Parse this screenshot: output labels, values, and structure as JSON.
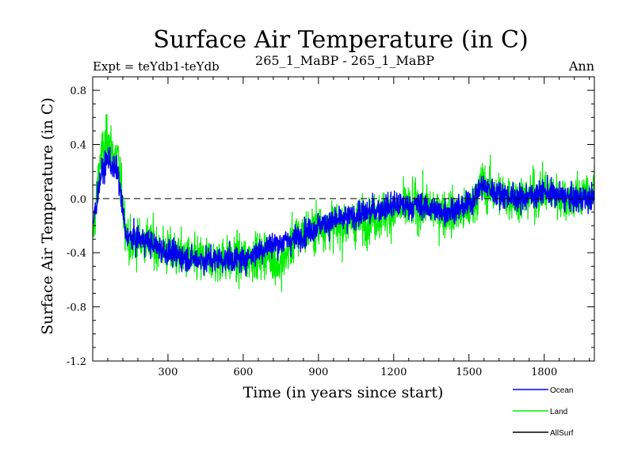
{
  "chart_data": {
    "type": "line",
    "title": "Surface Air Temperature (in C)",
    "subtitle_left": "Expt = teYdb1-teYdb",
    "subtitle_center": "265_1_MaBP - 265_1_MaBP",
    "subtitle_right": "Ann",
    "xlabel": "Time (in years since start)",
    "ylabel": "Surface Air Temperature (in C)",
    "xlim": [
      0,
      2000
    ],
    "ylim": [
      -1.2,
      0.9
    ],
    "x_ticks": [
      300,
      600,
      900,
      1200,
      1500,
      1800
    ],
    "x_tick_labels": [
      "300",
      "600",
      "900",
      "1200",
      "1500",
      "1800"
    ],
    "y_ticks": [
      -1.2,
      -0.8,
      -0.4,
      0.0,
      0.4,
      0.8
    ],
    "y_tick_labels": [
      "-1.2",
      "-0.8",
      "-0.4",
      "0.0",
      "0.4",
      "0.8"
    ],
    "reference_line": 0.0,
    "series": [
      {
        "name": "Land",
        "color": "#00ee00",
        "note": "annual values, high variance; approximate envelope shown by key points",
        "x": [
          0,
          30,
          60,
          90,
          100,
          130,
          150,
          200,
          300,
          400,
          500,
          600,
          700,
          750,
          800,
          900,
          1000,
          1100,
          1200,
          1300,
          1400,
          1500,
          1550,
          1600,
          1700,
          1800,
          1900,
          2000
        ],
        "values": [
          -0.3,
          0.3,
          0.45,
          0.3,
          0.3,
          -0.2,
          -0.35,
          -0.3,
          -0.4,
          -0.45,
          -0.45,
          -0.45,
          -0.4,
          -0.5,
          -0.3,
          -0.2,
          -0.2,
          -0.15,
          -0.1,
          -0.05,
          -0.1,
          -0.1,
          0.1,
          0.05,
          0.0,
          0.05,
          0.0,
          0.05
        ]
      },
      {
        "name": "Ocean",
        "color": "#0000ee",
        "note": "annual values, lower variance; approximate envelope shown by key points",
        "x": [
          0,
          30,
          60,
          90,
          100,
          130,
          150,
          200,
          300,
          400,
          500,
          600,
          700,
          800,
          900,
          1000,
          1100,
          1200,
          1300,
          1400,
          1500,
          1550,
          1600,
          1700,
          1800,
          1900,
          2000
        ],
        "values": [
          -0.2,
          0.15,
          0.3,
          0.2,
          0.2,
          -0.25,
          -0.3,
          -0.3,
          -0.4,
          -0.45,
          -0.45,
          -0.45,
          -0.35,
          -0.3,
          -0.2,
          -0.15,
          -0.1,
          -0.05,
          -0.05,
          -0.1,
          -0.05,
          0.1,
          0.05,
          0.0,
          0.05,
          0.0,
          0.0
        ]
      },
      {
        "name": "AllSurf",
        "color": "#000000",
        "note": "not visible in plot area (legend only)",
        "x": [],
        "values": []
      }
    ],
    "legend": {
      "placement": "bottom-right",
      "entries": [
        "Ocean",
        "Land",
        "AllSurf"
      ]
    }
  }
}
